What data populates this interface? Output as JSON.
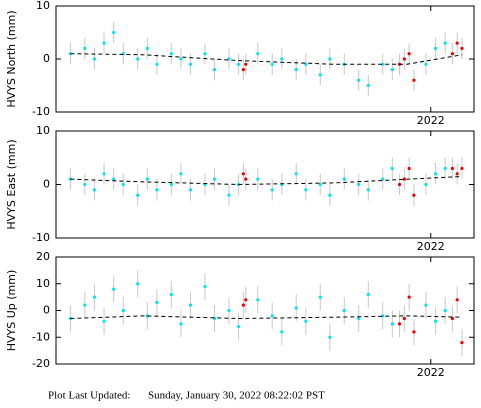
{
  "chart_data": [
    {
      "type": "scatter",
      "ylabel": "HVYS North (mm)",
      "xlim": [
        2014.2,
        2022.9
      ],
      "xticks": [
        2022
      ],
      "ylim": [
        -10,
        10
      ],
      "yticks": [
        -10,
        0,
        10
      ],
      "series": [
        {
          "color": "#00e5ee",
          "error": 2,
          "x": [
            2014.5,
            2014.8,
            2015.0,
            2015.2,
            2015.4,
            2015.6,
            2015.9,
            2016.1,
            2016.3,
            2016.6,
            2016.8,
            2017.0,
            2017.3,
            2017.5,
            2017.8,
            2018.0,
            2018.4,
            2018.7,
            2018.9,
            2019.2,
            2019.4,
            2019.7,
            2019.9,
            2020.2,
            2020.5,
            2020.7,
            2021.0,
            2021.2,
            2021.9,
            2022.1,
            2022.3
          ],
          "values": [
            1,
            2,
            0,
            3,
            5,
            1,
            0,
            2,
            -1,
            1,
            0,
            -1,
            1,
            -2,
            0,
            -1,
            1,
            -1,
            0,
            -2,
            -1,
            -3,
            0,
            -1,
            -4,
            -5,
            -1,
            -2,
            -1,
            2,
            3
          ]
        },
        {
          "color": "#ee0000",
          "error": 2,
          "x": [
            2018.1,
            2018.15,
            2021.35,
            2021.45,
            2021.55,
            2021.65,
            2022.45,
            2022.55,
            2022.65
          ],
          "values": [
            -2,
            -1,
            -1,
            0,
            1,
            -4,
            1,
            3,
            2
          ]
        }
      ],
      "trend": {
        "x": [
          2014.5,
          2016,
          2018,
          2020,
          2021.5,
          2022.65
        ],
        "values": [
          1,
          0.8,
          -0.3,
          -1,
          -1,
          0.8
        ]
      }
    },
    {
      "type": "scatter",
      "ylabel": "HVYS East (mm)",
      "xlim": [
        2014.2,
        2022.9
      ],
      "xticks": [
        2022
      ],
      "ylim": [
        -10,
        10
      ],
      "yticks": [
        -10,
        0,
        10
      ],
      "series": [
        {
          "color": "#00e5ee",
          "error": 2,
          "x": [
            2014.5,
            2014.8,
            2015.0,
            2015.2,
            2015.4,
            2015.6,
            2015.9,
            2016.1,
            2016.3,
            2016.6,
            2016.8,
            2017.0,
            2017.3,
            2017.5,
            2017.8,
            2018.0,
            2018.4,
            2018.7,
            2018.9,
            2019.2,
            2019.4,
            2019.7,
            2019.9,
            2020.2,
            2020.5,
            2020.7,
            2021.0,
            2021.2,
            2021.9,
            2022.1,
            2022.3
          ],
          "values": [
            1,
            0,
            -1,
            2,
            1,
            0,
            -2,
            1,
            -1,
            0,
            2,
            -1,
            0,
            1,
            -2,
            0,
            1,
            -1,
            0,
            2,
            -1,
            0,
            -2,
            1,
            0,
            -1,
            1,
            3,
            0,
            2,
            3
          ]
        },
        {
          "color": "#ee0000",
          "error": 2,
          "x": [
            2018.1,
            2018.15,
            2021.35,
            2021.45,
            2021.55,
            2021.65,
            2022.45,
            2022.55,
            2022.65
          ],
          "values": [
            2,
            1,
            0,
            1,
            3,
            -2,
            3,
            2,
            3
          ]
        }
      ],
      "trend": {
        "x": [
          2014.5,
          2016,
          2018,
          2020,
          2022.65
        ],
        "values": [
          1,
          0.5,
          0,
          0.3,
          1.5
        ]
      }
    },
    {
      "type": "scatter",
      "ylabel": "HVYS Up (mm)",
      "xlim": [
        2014.2,
        2022.9
      ],
      "xticks": [
        2022
      ],
      "ylim": [
        -20,
        20
      ],
      "yticks": [
        -20,
        -10,
        0,
        10,
        20
      ],
      "series": [
        {
          "color": "#00e5ee",
          "error": 5,
          "x": [
            2014.5,
            2014.8,
            2015.0,
            2015.2,
            2015.4,
            2015.6,
            2015.9,
            2016.1,
            2016.3,
            2016.6,
            2016.8,
            2017.0,
            2017.3,
            2017.5,
            2017.8,
            2018.0,
            2018.4,
            2018.7,
            2018.9,
            2019.2,
            2019.4,
            2019.7,
            2019.9,
            2020.2,
            2020.5,
            2020.7,
            2021.0,
            2021.2,
            2021.9,
            2022.1,
            2022.3
          ],
          "values": [
            -3,
            2,
            5,
            -4,
            8,
            0,
            10,
            -2,
            3,
            6,
            -5,
            2,
            9,
            -3,
            0,
            -6,
            4,
            -2,
            -8,
            1,
            -4,
            5,
            -10,
            0,
            -3,
            6,
            -2,
            -5,
            2,
            -4,
            0
          ]
        },
        {
          "color": "#ee0000",
          "error": 5,
          "x": [
            2018.1,
            2018.15,
            2021.35,
            2021.45,
            2021.55,
            2021.65,
            2022.45,
            2022.55,
            2022.65
          ],
          "values": [
            2,
            4,
            -5,
            -3,
            5,
            -8,
            -3,
            4,
            -12
          ]
        }
      ],
      "trend": {
        "x": [
          2014.5,
          2016,
          2018,
          2020,
          2021.5,
          2022.65
        ],
        "values": [
          -3,
          -2,
          -3,
          -2.5,
          -2,
          -2.5
        ]
      }
    }
  ],
  "footer": {
    "label": "Plot Last Updated:",
    "date": "Sunday, January 30, 2022 08:22:02 PST"
  }
}
